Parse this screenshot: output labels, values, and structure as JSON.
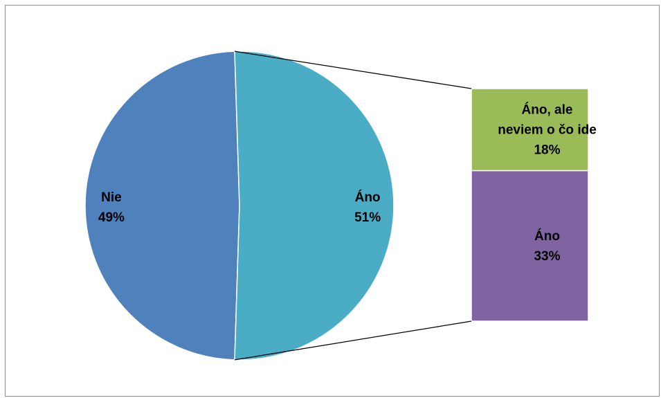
{
  "chart_data": {
    "type": "pie",
    "subtype": "pie-of-bar",
    "title": "",
    "slices": [
      {
        "label": "Nie",
        "value": 49,
        "display_value": "49%",
        "color": "#4f81bd"
      },
      {
        "label": "Áno",
        "value": 51,
        "display_value": "51%",
        "color": "#4bacc6"
      }
    ],
    "breakdown": {
      "of_slice": "Áno",
      "segments": [
        {
          "label_lines": [
            "Áno, ale",
            "neviem o čo ide"
          ],
          "value": 18,
          "display_value": "18%",
          "color": "#9bbb59"
        },
        {
          "label_lines": [
            "Áno"
          ],
          "value": 33,
          "display_value": "33%",
          "color": "#8064a2"
        }
      ]
    },
    "legend": "none"
  }
}
